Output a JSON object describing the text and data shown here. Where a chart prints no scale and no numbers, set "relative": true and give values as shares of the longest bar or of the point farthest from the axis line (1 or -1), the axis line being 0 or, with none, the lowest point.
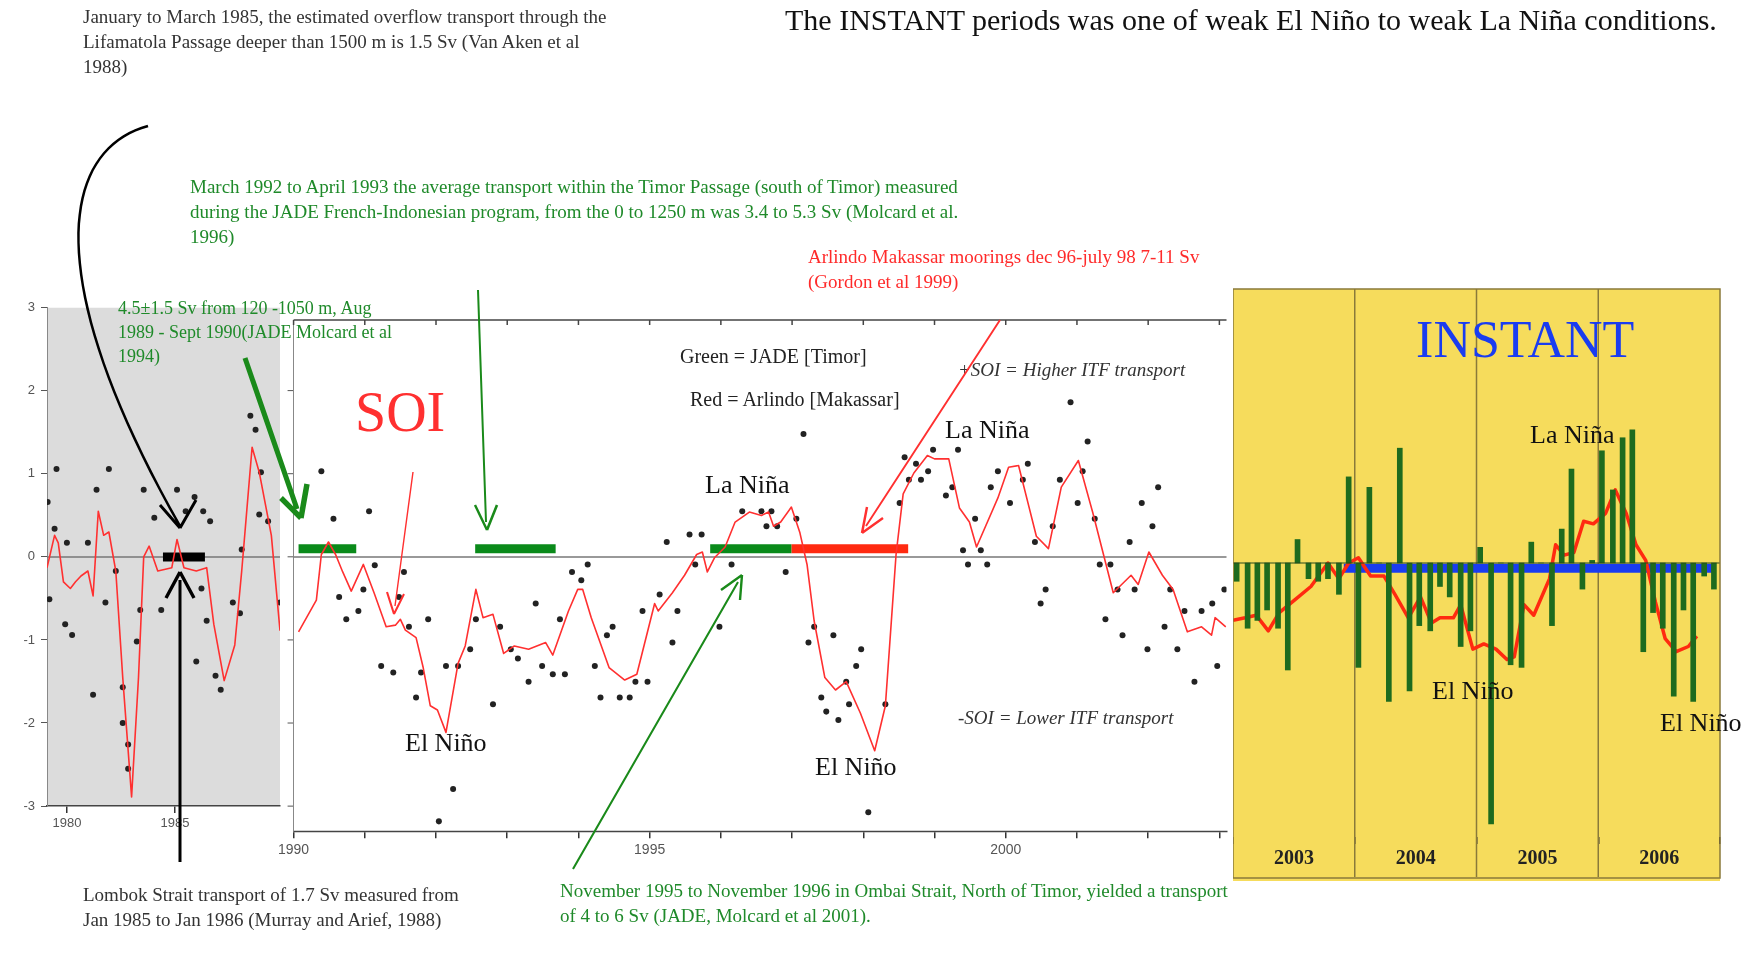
{
  "chart_data": [
    {
      "type": "line",
      "annotations": [
        "January to March 1985, the estimated overflow transport through the Lifamatola Passage deeper than 1500 m is 1.5 Sv (Van Aken et al 1988)",
        "Lombok Strait transport of 1.7 Sv measured from Jan 1985 to Jan 1986 (Murray and Arief, 1988)"
      ],
      "xlim": [
        1979.08,
        1989.85
      ],
      "xticks": [
        1980,
        1985
      ],
      "ylim": [
        -3,
        3
      ],
      "yticks": [
        -3,
        -2,
        -1,
        0,
        1,
        2,
        3
      ],
      "grid": false,
      "ref_lines": [
        {
          "axis": "y",
          "value": 0,
          "color": "#777777"
        }
      ],
      "series": [
        {
          "type": "line",
          "color": "#ff3030",
          "marker": "none",
          "x": [
            1979.08,
            1979.43,
            1979.6,
            1979.84,
            1980.16,
            1980.4,
            1980.65,
            1980.97,
            1981.21,
            1981.45,
            1981.7,
            1981.94,
            1982.26,
            1982.58,
            1982.99,
            1983.31,
            1983.55,
            1983.8,
            1984.2,
            1984.85,
            1985.09,
            1985.41,
            1985.98,
            1986.46,
            1986.79,
            1987.27,
            1987.76,
            1988.08,
            1988.56,
            1988.89,
            1989.45,
            1989.85
          ],
          "values": [
            -0.13,
            0.26,
            0.17,
            -0.3,
            -0.38,
            -0.3,
            -0.23,
            -0.17,
            -0.47,
            0.55,
            0.26,
            0.3,
            -0.17,
            -1.45,
            -2.89,
            -1.45,
            0.0,
            0.13,
            -0.17,
            -0.13,
            0.21,
            -0.13,
            -0.17,
            -0.13,
            -0.81,
            -1.49,
            -1.06,
            -0.17,
            1.32,
            1.02,
            0.26,
            -0.89
          ]
        },
        {
          "type": "scatter",
          "color": "#222222",
          "marker": "circle",
          "x": [
            1979.52,
            1979.11,
            1979.43,
            1979.19,
            1979.92,
            1980.24,
            1980.0,
            1980.97,
            1981.21,
            1981.37,
            1981.94,
            1981.78,
            1982.26,
            1982.58,
            1982.58,
            1982.83,
            1982.83,
            1983.23,
            1983.39,
            1983.55,
            1984.04,
            1984.36,
            1985.09,
            1985.49,
            1985.9,
            1986.3,
            1986.62,
            1986.22,
            1985.98,
            1986.46,
            1986.87,
            1987.11,
            1987.67,
            1988.0,
            1988.08,
            1988.48,
            1988.72,
            1988.97,
            1988.89,
            1989.3,
            1989.85
          ],
          "values": [
            1.06,
            0.66,
            0.34,
            -0.51,
            -0.81,
            -0.94,
            0.17,
            0.17,
            -1.66,
            0.81,
            1.06,
            -0.55,
            -0.17,
            -1.57,
            -2.0,
            -2.26,
            -2.55,
            -1.02,
            -0.64,
            0.81,
            0.47,
            -0.64,
            0.81,
            0.55,
            0.72,
            0.55,
            0.43,
            -0.38,
            -1.26,
            -0.77,
            -1.43,
            -1.6,
            -0.55,
            -0.68,
            0.09,
            1.7,
            1.53,
            1.02,
            0.51,
            0.43,
            -0.55
          ]
        },
        {
          "type": "line",
          "color": "#000000",
          "marker": "none",
          "x": [
            1984.44,
            1986.38
          ],
          "values": [
            0,
            0
          ]
        }
      ]
    },
    {
      "type": "line",
      "annotations": [
        "4.5±1.5 Sv from 120 -1050 m, Aug 1989 - Sept 1990(JADE Molcard et al 1994)",
        "March 1992 to April 1993 the average transport within the Timor Passage (south of Timor) measured during the JADE French-Indonesian program, from the 0 to 1250 m was 3.4 to 5.3 Sv (Molcard et al. 1996)",
        "Arlindo Makassar moorings dec 96-july 98 7-11 Sv (Gordon et al 1999)",
        "Green = JADE [Timor]",
        "Red = Arlindo [Makassar]",
        "+SOI = Higher ITF transport",
        "-SOI = Lower ITF transport",
        "November 1995 to November 1996 in Ombai Strait, North of Timor, yielded a transport of 4 to 6 Sv (JADE, Molcard et al 2001).",
        "El Niño",
        "La Niña",
        "El Niño",
        "La Niña"
      ],
      "xlim": [
        1990,
        2003.1
      ],
      "xticks": [
        1990,
        {
          "value": 1991,
          "label": null
        },
        {
          "value": 1992,
          "label": null
        },
        {
          "value": 1993,
          "label": null
        },
        {
          "value": 1994,
          "label": null
        },
        1995,
        {
          "value": 1996,
          "label": null
        },
        {
          "value": 1997,
          "label": null
        },
        {
          "value": 1998,
          "label": null
        },
        {
          "value": 1999,
          "label": null
        },
        2000,
        {
          "value": 2001,
          "label": null
        },
        {
          "value": 2002,
          "label": null
        },
        {
          "value": 2003,
          "label": null
        }
      ],
      "ylim": [
        -3.3,
        2.85
      ],
      "yticks": [
        -3,
        -2,
        -1,
        0,
        1,
        2
      ],
      "tick_labels": "x",
      "grid": false,
      "ref_lines": [
        {
          "axis": "y",
          "value": 0,
          "color": "#777777"
        }
      ],
      "series": [
        {
          "type": "line",
          "name": "SOI",
          "color": "#ff3030",
          "marker": "none",
          "x": [
            1990.07,
            1990.32,
            1990.39,
            1990.49,
            1990.59,
            1990.69,
            1990.81,
            1990.98,
            1991.13,
            1991.3,
            1991.43,
            1991.5,
            1991.57,
            1991.72,
            1991.82,
            1991.92,
            1992.02,
            1992.14,
            1992.31,
            1992.41,
            1992.56,
            1992.66,
            1992.8,
            1992.95,
            1993.1,
            1993.3,
            1993.54,
            1993.64,
            1993.86,
            1993.99,
            1994.06,
            1994.18,
            1994.43,
            1994.65,
            1994.82,
            1995.07,
            1995.12,
            1995.32,
            1995.49,
            1995.66,
            1995.74,
            1995.81,
            1995.91,
            1996.06,
            1996.2,
            1996.4,
            1996.57,
            1996.67,
            1996.74,
            1996.84,
            1996.99,
            1997.11,
            1997.21,
            1997.31,
            1997.46,
            1997.61,
            1997.76,
            1997.96,
            1998.16,
            1998.31,
            1998.46,
            1998.56,
            1998.71,
            1998.9,
            1999.0,
            1999.2,
            1999.35,
            1999.49,
            1999.59,
            1999.89,
            2000.04,
            2000.18,
            2000.43,
            2000.6,
            2000.78,
            2001.02,
            2001.22,
            2001.51,
            2001.76,
            2001.86,
            2002.01,
            2002.2,
            2002.35,
            2002.55,
            2002.75,
            2002.89,
            2002.94,
            2003.09
          ],
          "values": [
            -0.9,
            -0.52,
            0.03,
            0.18,
            0.03,
            -0.18,
            -0.41,
            -0.09,
            -0.43,
            -0.84,
            -0.82,
            -0.75,
            -0.88,
            -0.97,
            -1.33,
            -1.79,
            -1.84,
            -2.11,
            -1.28,
            -1.07,
            -0.39,
            -0.73,
            -0.69,
            -1.16,
            -1.07,
            -1.11,
            -1.03,
            -1.18,
            -0.65,
            -0.39,
            -0.39,
            -0.73,
            -1.33,
            -1.48,
            -1.41,
            -0.56,
            -0.65,
            -0.43,
            -0.22,
            0.03,
            0.06,
            -0.18,
            -0.01,
            0.12,
            0.42,
            0.54,
            0.5,
            0.54,
            0.37,
            0.42,
            0.6,
            0.29,
            -0.09,
            -0.77,
            -1.45,
            -1.6,
            -1.5,
            -1.88,
            -2.33,
            -1.79,
            0.03,
            0.76,
            1.01,
            1.22,
            1.18,
            1.18,
            0.59,
            0.42,
            0.12,
            0.71,
            1.08,
            1.1,
            0.25,
            0.1,
            0.84,
            1.16,
            0.54,
            -0.43,
            -0.22,
            -0.33,
            0.06,
            -0.22,
            -0.39,
            -0.9,
            -0.84,
            -0.94,
            -0.73,
            -0.84
          ]
        },
        {
          "type": "scatter",
          "color": "#222222",
          "marker": "circle",
          "x": [
            1990.39,
            1990.56,
            1991.06,
            1990.64,
            1990.74,
            1990.91,
            1990.98,
            1991.14,
            1991.23,
            1991.4,
            1991.55,
            1991.48,
            1991.62,
            1991.72,
            1991.89,
            1991.79,
            1992.14,
            1992.24,
            1992.04,
            1992.31,
            1992.48,
            1992.56,
            1992.8,
            1992.9,
            1993.05,
            1993.15,
            1993.3,
            1993.4,
            1993.49,
            1993.64,
            1993.81,
            1993.74,
            1993.91,
            1994.04,
            1994.13,
            1994.23,
            1994.31,
            1994.4,
            1994.48,
            1994.58,
            1994.72,
            1994.8,
            1994.97,
            1994.9,
            1995.14,
            1995.24,
            1995.32,
            1995.39,
            1995.56,
            1995.73,
            1995.64,
            1995.98,
            1996.15,
            1996.3,
            1996.57,
            1996.71,
            1996.64,
            1996.79,
            1996.91,
            1997.06,
            1997.16,
            1997.23,
            1997.31,
            1997.41,
            1997.48,
            1997.58,
            1997.65,
            1997.76,
            1997.8,
            1997.9,
            1997.97,
            1998.07,
            1998.31,
            1998.51,
            1998.58,
            1998.64,
            1998.74,
            1998.81,
            1998.91,
            1998.98,
            1999.16,
            1999.25,
            1999.33,
            1999.4,
            1999.47,
            1999.57,
            1999.65,
            1999.74,
            1999.79,
            1999.89,
            2000.06,
            2000.24,
            2000.31,
            2000.41,
            2000.49,
            2000.56,
            2000.66,
            2000.76,
            2000.91,
            2001.01,
            2001.08,
            2001.15,
            2001.25,
            2001.32,
            2001.4,
            2001.47,
            2001.57,
            2001.64,
            2001.74,
            2001.81,
            2001.91,
            2001.99,
            2002.06,
            2002.14,
            2002.23,
            2002.31,
            2002.41,
            2002.51,
            2002.65,
            2002.75,
            2002.9,
            2002.97,
            2003.07
          ],
          "values": [
            1.03,
            0.46,
            0.55,
            -0.48,
            -0.75,
            -0.65,
            -0.39,
            -0.1,
            -1.31,
            -1.39,
            -0.18,
            -0.48,
            -0.84,
            -1.69,
            -0.75,
            -1.39,
            -1.31,
            -2.79,
            -3.18,
            -1.31,
            -1.11,
            -0.75,
            -1.77,
            -0.84,
            -1.11,
            -1.22,
            -1.5,
            -0.56,
            -1.31,
            -1.41,
            -1.41,
            -0.75,
            -0.18,
            -0.28,
            -0.09,
            -1.31,
            -1.69,
            -0.94,
            -0.84,
            -1.69,
            -1.69,
            -1.5,
            -1.5,
            -0.65,
            -0.45,
            0.18,
            -1.03,
            -0.65,
            0.27,
            0.27,
            -0.09,
            -0.84,
            -0.09,
            0.55,
            0.55,
            0.55,
            0.37,
            0.37,
            -0.18,
            0.46,
            1.48,
            -1.03,
            -0.84,
            -1.69,
            -1.86,
            -0.94,
            -1.96,
            -1.5,
            -1.77,
            -1.31,
            -1.11,
            -3.07,
            -1.77,
            0.65,
            1.2,
            0.93,
            1.12,
            0.93,
            1.03,
            1.29,
            0.74,
            0.84,
            1.29,
            0.08,
            -0.09,
            0.46,
            0.08,
            -0.09,
            0.84,
            1.03,
            0.65,
            0.93,
            1.12,
            0.18,
            -0.56,
            -0.39,
            0.37,
            0.93,
            1.86,
            0.65,
            1.03,
            1.39,
            0.46,
            -0.09,
            -0.75,
            -0.09,
            -0.39,
            -0.94,
            0.18,
            -0.39,
            0.65,
            -1.11,
            0.37,
            0.84,
            -0.84,
            -0.39,
            -1.11,
            -0.65,
            -1.5,
            -0.65,
            -0.56,
            -1.31,
            -0.39
          ]
        },
        {
          "type": "line",
          "color": "#0a8a1a",
          "marker": "none",
          "x": [
            1990.07,
            1990.88
          ],
          "values": [
            0.1,
            0.1
          ]
        },
        {
          "type": "line",
          "color": "#0a8a1a",
          "marker": "none",
          "x": [
            1992.55,
            1993.68
          ],
          "values": [
            0.1,
            0.1
          ]
        },
        {
          "type": "line",
          "color": "#0a8a1a",
          "marker": "none",
          "x": [
            1995.85,
            1996.99
          ],
          "values": [
            0.1,
            0.1
          ]
        },
        {
          "type": "line",
          "color": "#ff2a10",
          "marker": "none",
          "x": [
            1996.99,
            1998.63
          ],
          "values": [
            0.1,
            0.1
          ]
        }
      ]
    },
    {
      "type": "bar",
      "title": "INSTANT",
      "relative": true,
      "annotations": [
        "The INSTANT periods was one of weak El Niño to weak La Niña conditions.",
        "La Niña",
        "El Niño",
        "El Niño"
      ],
      "xlim": [
        2003,
        2007
      ],
      "xticks": [
        {
          "value": 2003.5,
          "label": "2003"
        },
        {
          "value": 2004.5,
          "label": "2004"
        },
        {
          "value": 2005.5,
          "label": "2005"
        },
        {
          "value": 2006.5,
          "label": "2006"
        }
      ],
      "grid": false,
      "ref_lines": [
        {
          "axis": "x",
          "value": 2004,
          "color": "#8a7a3a"
        },
        {
          "axis": "x",
          "value": 2005,
          "color": "#8a7a3a"
        },
        {
          "axis": "x",
          "value": 2006,
          "color": "#8a7a3a"
        }
      ],
      "series": [
        {
          "type": "bar",
          "color": "#1e6b1e",
          "x": [
            2003.03,
            2003.12,
            2003.2,
            2003.28,
            2003.37,
            2003.45,
            2003.53,
            2003.62,
            2003.7,
            2003.78,
            2003.87,
            2003.95,
            2004.03,
            2004.12,
            2004.2,
            2004.28,
            2004.37,
            2004.45,
            2004.53,
            2004.62,
            2004.7,
            2004.78,
            2004.87,
            2004.95,
            2005.03,
            2005.12,
            2005.2,
            2005.28,
            2005.37,
            2005.45,
            2005.53,
            2005.62,
            2005.7,
            2005.78,
            2005.87,
            2005.95,
            2006.03,
            2006.12,
            2006.2,
            2006.28,
            2006.37,
            2006.45,
            2006.53,
            2006.62,
            2006.7,
            2006.78,
            2006.87,
            2006.95
          ],
          "values": [
            -0.07,
            -0.25,
            -0.22,
            -0.18,
            -0.25,
            -0.41,
            0.09,
            -0.06,
            -0.07,
            -0.06,
            -0.12,
            0.33,
            -0.4,
            0.29,
            0.0,
            -0.53,
            0.44,
            -0.49,
            -0.24,
            -0.26,
            -0.09,
            -0.13,
            -0.32,
            -0.26,
            0.06,
            -1.0,
            0.0,
            -0.39,
            -0.4,
            0.08,
            0.0,
            -0.24,
            0.13,
            0.36,
            -0.1,
            0.01,
            0.43,
            0.28,
            0.48,
            0.51,
            -0.34,
            -0.19,
            -0.25,
            -0.51,
            -0.18,
            -0.53,
            -0.05,
            -0.1
          ]
        },
        {
          "type": "line",
          "color": "#ff2a10",
          "marker": "none",
          "x": [
            2003.0,
            2003.1,
            2003.19,
            2003.29,
            2003.38,
            2003.51,
            2003.64,
            2003.78,
            2003.87,
            2003.95,
            2004.03,
            2004.13,
            2004.24,
            2004.33,
            2004.44,
            2004.54,
            2004.63,
            2004.7,
            2004.81,
            2004.87,
            2004.97,
            2005.06,
            2005.16,
            2005.25,
            2005.31,
            2005.39,
            2005.47,
            2005.6,
            2005.65,
            2005.72,
            2005.8,
            2005.88,
            2005.96,
            2006.06,
            2006.14,
            2006.23,
            2006.31,
            2006.39,
            2006.47,
            2006.55,
            2006.64,
            2006.74,
            2006.81
          ],
          "values": [
            -0.22,
            -0.21,
            -0.2,
            -0.26,
            -0.19,
            -0.14,
            -0.09,
            0.0,
            -0.06,
            0.0,
            0.02,
            -0.05,
            -0.05,
            -0.12,
            -0.21,
            -0.13,
            -0.23,
            -0.21,
            -0.21,
            -0.16,
            -0.33,
            -0.31,
            -0.33,
            -0.37,
            -0.36,
            -0.16,
            -0.2,
            -0.06,
            0.07,
            0.03,
            0.04,
            0.16,
            0.15,
            0.19,
            0.28,
            0.19,
            0.07,
            0.01,
            -0.15,
            -0.29,
            -0.34,
            -0.32,
            -0.28
          ]
        },
        {
          "type": "line",
          "color": "#1a3cf0",
          "marker": "none",
          "x": [
            2003.91,
            2006.94
          ],
          "values": [
            -0.02,
            -0.02
          ]
        }
      ]
    }
  ]
}
